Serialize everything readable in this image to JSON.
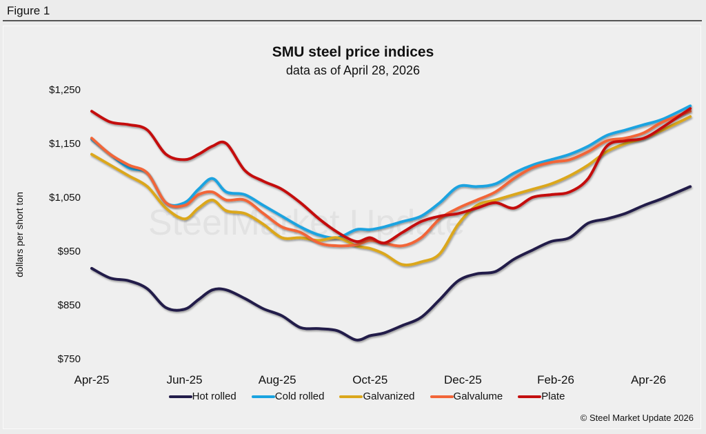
{
  "figure_label": "Figure 1",
  "copyright": "© Steel Market Update 2026",
  "watermark": "SteelMarket Update",
  "chart_data": {
    "type": "line",
    "title": "SMU steel price indices",
    "subtitle": "data as of April 28, 2026",
    "xlabel": "",
    "ylabel": "dollars per short ton",
    "ylim": [
      750,
      1250
    ],
    "yticks": [
      750,
      850,
      950,
      1050,
      1150,
      1250
    ],
    "ytick_labels": [
      "$750",
      "$850",
      "$950",
      "$1,050",
      "$1,150",
      "$1,250"
    ],
    "xlim": [
      0,
      12.9
    ],
    "xticks": [
      0,
      2,
      4,
      6,
      8,
      10,
      12
    ],
    "xtick_labels": [
      "Apr-25",
      "Jun-25",
      "Aug-25",
      "Oct-25",
      "Dec-25",
      "Feb-26",
      "Apr-26"
    ],
    "x_unit": "months since Apr-25",
    "grid": false,
    "legend_position": "bottom",
    "series": [
      {
        "name": "Hot rolled",
        "color": "#221c4a",
        "x": [
          0,
          0.4,
          0.8,
          1.2,
          1.6,
          2.0,
          2.3,
          2.6,
          2.9,
          3.3,
          3.7,
          4.1,
          4.5,
          4.9,
          5.3,
          5.7,
          6.0,
          6.3,
          6.7,
          7.1,
          7.5,
          7.9,
          8.3,
          8.7,
          9.1,
          9.5,
          9.9,
          10.3,
          10.7,
          11.1,
          11.5,
          11.9,
          12.3,
          12.9
        ],
        "values": [
          918,
          900,
          895,
          880,
          845,
          842,
          860,
          878,
          878,
          862,
          843,
          830,
          808,
          806,
          802,
          785,
          793,
          798,
          812,
          827,
          860,
          895,
          908,
          912,
          935,
          952,
          968,
          975,
          1002,
          1010,
          1020,
          1035,
          1048,
          1070
        ]
      },
      {
        "name": "Cold rolled",
        "color": "#1aa3e0",
        "x": [
          0,
          0.4,
          0.8,
          1.2,
          1.6,
          2.0,
          2.3,
          2.6,
          2.9,
          3.3,
          3.7,
          4.1,
          4.5,
          4.9,
          5.3,
          5.7,
          6.0,
          6.3,
          6.7,
          7.1,
          7.5,
          7.9,
          8.3,
          8.7,
          9.1,
          9.5,
          9.9,
          10.3,
          10.7,
          11.1,
          11.5,
          11.9,
          12.3,
          12.9
        ],
        "values": [
          1158,
          1130,
          1105,
          1095,
          1040,
          1040,
          1065,
          1085,
          1060,
          1055,
          1035,
          1015,
          995,
          980,
          975,
          990,
          990,
          995,
          1005,
          1015,
          1040,
          1070,
          1070,
          1075,
          1095,
          1110,
          1120,
          1130,
          1145,
          1165,
          1175,
          1185,
          1195,
          1220
        ]
      },
      {
        "name": "Galvanized",
        "color": "#dba71c",
        "x": [
          0,
          0.4,
          0.8,
          1.2,
          1.6,
          2.0,
          2.3,
          2.6,
          2.9,
          3.3,
          3.7,
          4.1,
          4.5,
          4.9,
          5.3,
          5.7,
          6.0,
          6.3,
          6.7,
          7.1,
          7.5,
          7.9,
          8.3,
          8.7,
          9.1,
          9.5,
          9.9,
          10.3,
          10.7,
          11.1,
          11.5,
          11.9,
          12.3,
          12.9
        ],
        "values": [
          1130,
          1110,
          1090,
          1070,
          1030,
          1010,
          1030,
          1045,
          1025,
          1020,
          1000,
          975,
          975,
          970,
          975,
          960,
          955,
          945,
          925,
          930,
          945,
          1000,
          1035,
          1045,
          1055,
          1065,
          1075,
          1090,
          1110,
          1135,
          1150,
          1160,
          1175,
          1200
        ]
      },
      {
        "name": "Galvalume",
        "color": "#f26538",
        "x": [
          0,
          0.4,
          0.8,
          1.2,
          1.6,
          2.0,
          2.3,
          2.6,
          2.9,
          3.3,
          3.7,
          4.1,
          4.5,
          4.9,
          5.3,
          5.7,
          6.0,
          6.3,
          6.7,
          7.1,
          7.5,
          7.9,
          8.3,
          8.7,
          9.1,
          9.5,
          9.9,
          10.3,
          10.7,
          11.1,
          11.5,
          11.9,
          12.3,
          12.9
        ],
        "values": [
          1160,
          1130,
          1110,
          1095,
          1040,
          1035,
          1055,
          1060,
          1045,
          1045,
          1020,
          995,
          985,
          965,
          960,
          962,
          970,
          965,
          960,
          975,
          1010,
          1030,
          1045,
          1060,
          1085,
          1105,
          1115,
          1120,
          1135,
          1155,
          1160,
          1170,
          1190,
          1210
        ]
      },
      {
        "name": "Plate",
        "color": "#c40f0f",
        "x": [
          0,
          0.4,
          0.8,
          1.2,
          1.6,
          2.0,
          2.3,
          2.6,
          2.9,
          3.3,
          3.7,
          4.1,
          4.5,
          4.9,
          5.3,
          5.7,
          6.0,
          6.3,
          6.7,
          7.1,
          7.5,
          7.9,
          8.3,
          8.7,
          9.1,
          9.5,
          9.9,
          10.3,
          10.7,
          11.1,
          11.5,
          11.9,
          12.3,
          12.9
        ],
        "values": [
          1210,
          1190,
          1185,
          1175,
          1130,
          1120,
          1130,
          1145,
          1150,
          1100,
          1080,
          1065,
          1040,
          1010,
          985,
          968,
          975,
          965,
          985,
          1005,
          1015,
          1020,
          1030,
          1040,
          1030,
          1050,
          1055,
          1060,
          1085,
          1145,
          1155,
          1160,
          1180,
          1215
        ]
      }
    ]
  }
}
